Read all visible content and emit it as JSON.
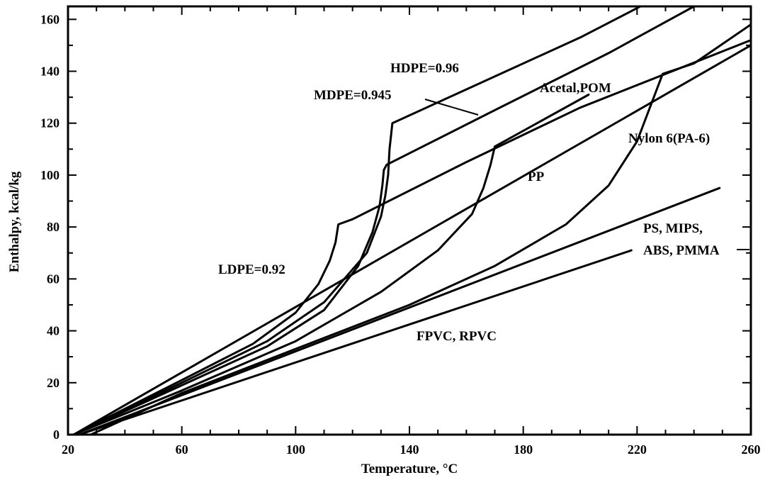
{
  "chart_data": {
    "type": "line",
    "xlabel": "Temperature, °C",
    "ylabel": "Enthalpy, kcal/kg",
    "xlim": [
      20,
      260
    ],
    "ylim": [
      0,
      165
    ],
    "xticks": [
      "20",
      "60",
      "100",
      "140",
      "180",
      "220",
      "260"
    ],
    "yticks": [
      "0",
      "20",
      "40",
      "60",
      "80",
      "100",
      "120",
      "140",
      "160"
    ],
    "grid": false,
    "annotations": [
      "HDPE=0.96",
      "MDPE=0.945",
      "Acetal,POM",
      "Nylon 6(PA-6)",
      "PP",
      "LDPE=0.92",
      "PS, MIPS,",
      "ABS, PMMA",
      "FPVC, RPVC"
    ],
    "series": [
      {
        "id": "hdpe",
        "x": [
          22,
          60,
          90,
          110,
          125,
          130,
          131.5,
          132.5,
          133,
          134,
          160,
          200,
          230
        ],
        "y": [
          0,
          20,
          36,
          51,
          70,
          84,
          92,
          100,
          110,
          120,
          133,
          153,
          170
        ]
      },
      {
        "id": "mdpe",
        "x": [
          22,
          60,
          90,
          110,
          122,
          127,
          129.5,
          130.5,
          131,
          132,
          170,
          210,
          240
        ],
        "y": [
          0,
          19,
          34,
          48,
          65,
          78,
          88,
          96,
          102,
          104,
          125,
          147,
          165
        ]
      },
      {
        "id": "pom",
        "x": [
          22,
          60,
          100,
          130,
          150,
          162,
          166,
          168.5,
          170,
          203
        ],
        "y": [
          0,
          17,
          36,
          55,
          71,
          85,
          95,
          104,
          111,
          131
        ]
      },
      {
        "id": "nylon",
        "x": [
          28,
          60,
          100,
          140,
          170,
          195,
          210,
          220,
          229,
          240,
          260
        ],
        "y": [
          0,
          16,
          33,
          50,
          65,
          81,
          96,
          113,
          139,
          143,
          158
        ]
      },
      {
        "id": "pp",
        "x": [
          22,
          260
        ],
        "y": [
          0,
          150
        ]
      },
      {
        "id": "ldpe",
        "x": [
          22,
          60,
          85,
          100,
          108,
          112,
          114,
          115,
          120,
          160,
          200,
          260
        ],
        "y": [
          0,
          21,
          35,
          47,
          58,
          67,
          74,
          81,
          83,
          105,
          126,
          152
        ]
      },
      {
        "id": "ps",
        "x": [
          24,
          249
        ],
        "y": [
          0,
          95
        ]
      },
      {
        "id": "pvc",
        "x": [
          24,
          218
        ],
        "y": [
          0,
          71
        ]
      }
    ]
  }
}
